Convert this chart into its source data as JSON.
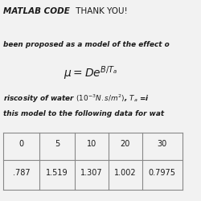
{
  "line1_bold": "MATLAB CODE",
  "line1_normal": " THANK YOU!",
  "line2": "been proposed as a model of the effect o",
  "equation": "$\\mu = De^{B/T_a}$",
  "line3": "riscosity of water $(10^{-3}N.s/m^2)$, $T_a$ =i",
  "line4": "this model to the following data for wat",
  "table_row1": [
    "0",
    "5",
    "10",
    "20",
    "30"
  ],
  "table_row2": [
    ".787",
    "1.519",
    "1.307",
    "1.002",
    "0.7975"
  ],
  "bg_color": "#f2f2f2",
  "text_color": "#1a1a1a",
  "table_line_color": "#888888"
}
